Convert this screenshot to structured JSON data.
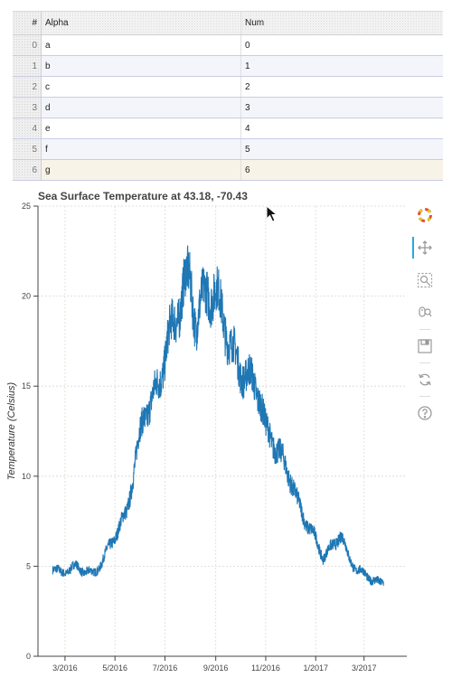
{
  "table": {
    "columns": [
      "#",
      "Alpha",
      "Num"
    ],
    "rows": [
      {
        "index": "0",
        "alpha": "a",
        "num": "0"
      },
      {
        "index": "1",
        "alpha": "b",
        "num": "1"
      },
      {
        "index": "2",
        "alpha": "c",
        "num": "2"
      },
      {
        "index": "3",
        "alpha": "d",
        "num": "3"
      },
      {
        "index": "4",
        "alpha": "e",
        "num": "4"
      },
      {
        "index": "5",
        "alpha": "f",
        "num": "5"
      },
      {
        "index": "6",
        "alpha": "g",
        "num": "6"
      }
    ]
  },
  "toolbar": {
    "tools": [
      "bokeh-logo-icon",
      "pan-icon",
      "box-zoom-icon",
      "wheel-zoom-icon",
      "save-icon",
      "reset-icon",
      "help-icon"
    ],
    "active_color": "#26aae1"
  },
  "chart_data": {
    "type": "line",
    "title": "Sea Surface Temperature at 43.18, -70.43",
    "xlabel": "",
    "ylabel": "Temperature (Celsius)",
    "ylim": [
      0,
      25
    ],
    "xlim": [
      "2016-01-28",
      "2017-05-01"
    ],
    "y_ticks": [
      0,
      5,
      10,
      15,
      20,
      25
    ],
    "x_ticks": [
      {
        "date": "2016-03-01",
        "label": "3/2016"
      },
      {
        "date": "2016-05-01",
        "label": "5/2016"
      },
      {
        "date": "2016-07-01",
        "label": "7/2016"
      },
      {
        "date": "2016-09-01",
        "label": "9/2016"
      },
      {
        "date": "2016-11-01",
        "label": "11/2016"
      },
      {
        "date": "2017-01-01",
        "label": "1/2017"
      },
      {
        "date": "2017-03-01",
        "label": "3/2017"
      }
    ],
    "grid": true,
    "line_color": "#1f77b4",
    "series": [
      {
        "x": [
          "2016-02-15",
          "2016-02-25",
          "2016-03-05",
          "2016-03-15",
          "2016-03-25",
          "2016-04-05",
          "2016-04-15",
          "2016-04-25",
          "2016-05-05",
          "2016-05-15",
          "2016-05-25",
          "2016-06-05",
          "2016-06-15",
          "2016-06-25",
          "2016-07-05",
          "2016-07-15",
          "2016-07-25",
          "2016-08-01",
          "2016-08-08",
          "2016-08-15",
          "2016-08-22",
          "2016-09-01",
          "2016-09-10",
          "2016-09-20",
          "2016-10-01",
          "2016-10-10",
          "2016-10-20",
          "2016-10-25",
          "2016-11-01",
          "2016-11-10",
          "2016-11-20",
          "2016-12-01",
          "2016-12-10",
          "2016-12-20",
          "2017-01-01",
          "2017-01-10",
          "2017-01-20",
          "2017-02-01",
          "2017-02-10",
          "2017-02-20",
          "2017-03-01",
          "2017-03-10",
          "2017-03-20",
          "2017-03-25"
        ],
        "y": [
          4.9,
          4.6,
          4.8,
          5.0,
          4.7,
          4.6,
          5.2,
          6.2,
          7.0,
          8.0,
          10.5,
          13.5,
          14.0,
          15.5,
          17.5,
          19.0,
          20.5,
          21.0,
          18.5,
          19.5,
          20.5,
          20.0,
          19.0,
          17.0,
          16.0,
          15.5,
          15.0,
          14.5,
          12.5,
          12.0,
          11.0,
          10.0,
          8.5,
          7.5,
          6.5,
          5.5,
          6.0,
          6.8,
          5.5,
          4.8,
          4.6,
          4.3,
          4.0,
          4.2
        ]
      }
    ]
  }
}
